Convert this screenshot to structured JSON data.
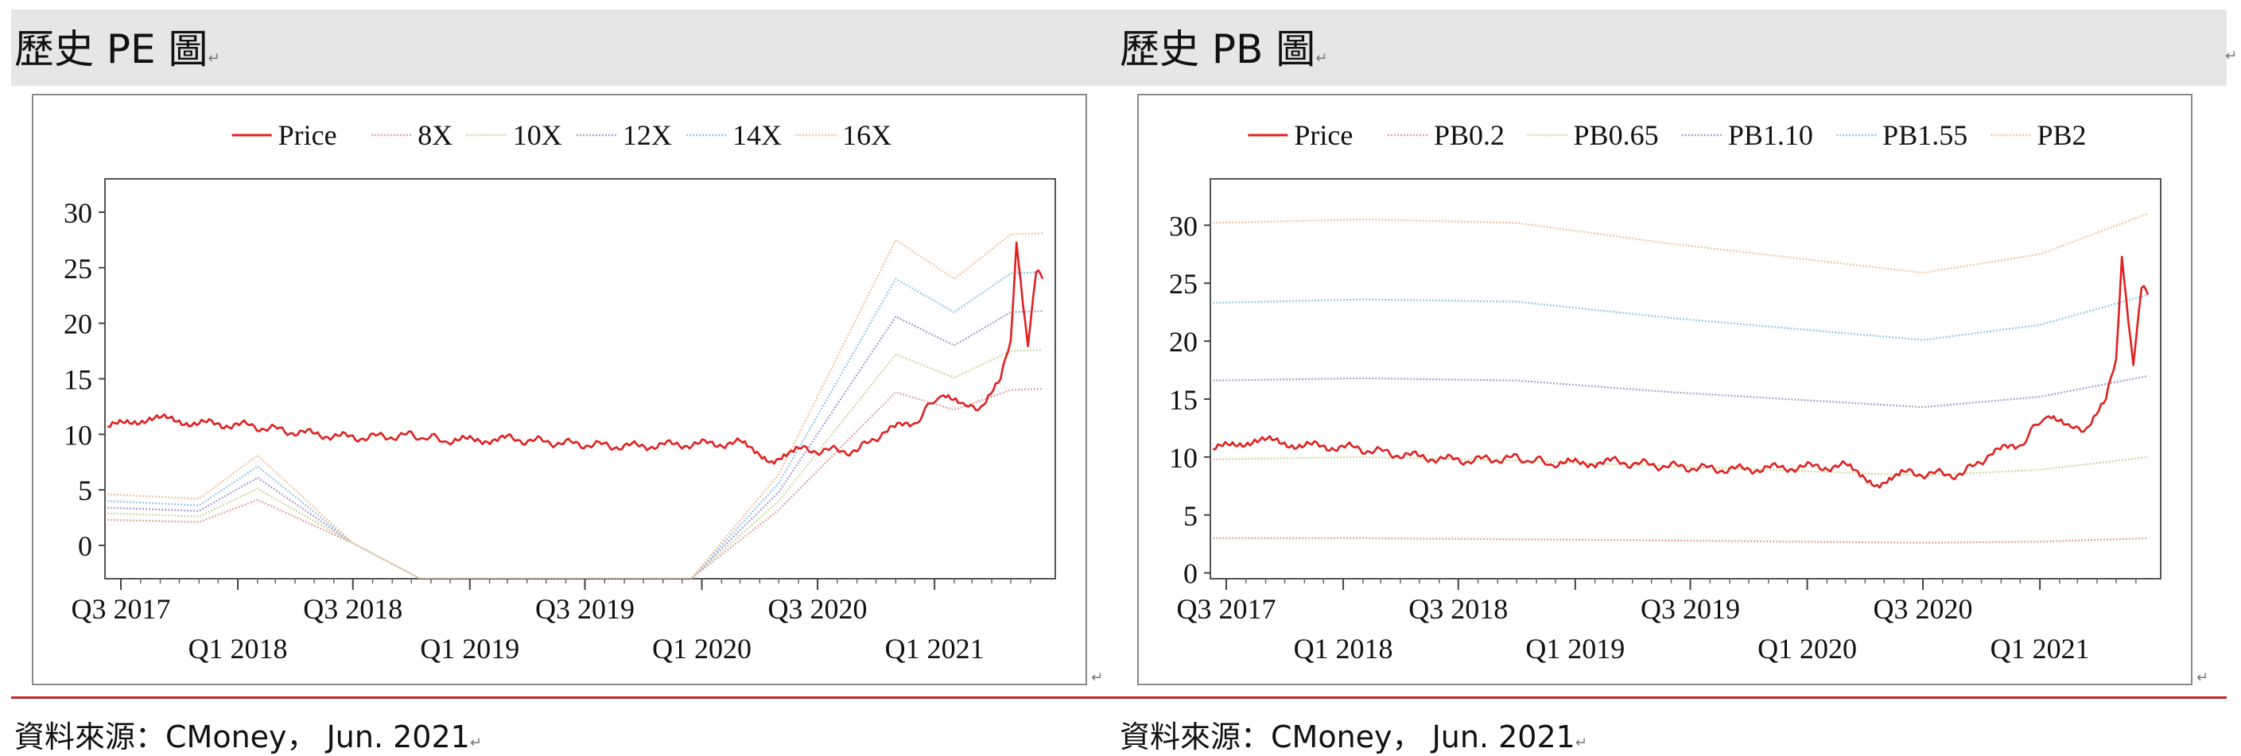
{
  "left_panel": {
    "title": "歷史 PE 圖",
    "source": "資料來源：CMoney， Jun. 2021"
  },
  "right_panel": {
    "title": "歷史 PB 圖",
    "source": "資料來源：CMoney， Jun. 2021"
  },
  "paragraph_mark": "↵",
  "chart_data": [
    {
      "id": "pe",
      "type": "line",
      "title": "",
      "xlabel": "",
      "ylabel": "",
      "xlim": [
        "2017-07-01",
        "2021-06-30"
      ],
      "ylim": [
        -3,
        33
      ],
      "yticks": [
        0,
        5,
        10,
        15,
        20,
        25,
        30
      ],
      "xticks": [
        {
          "label": "Q3 2017",
          "date": "2017-07-01",
          "row": 0
        },
        {
          "label": "Q1 2018",
          "date": "2018-01-01",
          "row": 1
        },
        {
          "label": "Q3 2018",
          "date": "2018-07-01",
          "row": 0
        },
        {
          "label": "Q1 2019",
          "date": "2019-01-01",
          "row": 1
        },
        {
          "label": "Q3 2019",
          "date": "2019-07-01",
          "row": 0
        },
        {
          "label": "Q1 2020",
          "date": "2020-01-01",
          "row": 1
        },
        {
          "label": "Q3 2020",
          "date": "2020-07-01",
          "row": 0
        },
        {
          "label": "Q1 2021",
          "date": "2021-01-01",
          "row": 1
        }
      ],
      "legend_position": "top",
      "grid": false,
      "series": [
        {
          "name": "Price",
          "color": "#e02020",
          "style": "solid",
          "points": [
            [
              "2017-06-10",
              10.6
            ],
            [
              "2017-08-15",
              11.5
            ],
            [
              "2017-11-01",
              11.0
            ],
            [
              "2018-01-15",
              10.8
            ],
            [
              "2018-04-01",
              10.2
            ],
            [
              "2018-07-01",
              9.7
            ],
            [
              "2018-10-01",
              9.9
            ],
            [
              "2018-12-01",
              9.4
            ],
            [
              "2019-03-01",
              9.6
            ],
            [
              "2019-06-01",
              9.2
            ],
            [
              "2019-09-01",
              8.9
            ],
            [
              "2019-12-01",
              9.1
            ],
            [
              "2020-03-01",
              9.2
            ],
            [
              "2020-04-20",
              7.7
            ],
            [
              "2020-06-01",
              8.6
            ],
            [
              "2020-09-01",
              8.5
            ],
            [
              "2020-10-15",
              10.3
            ],
            [
              "2020-12-01",
              11.1
            ],
            [
              "2021-01-15",
              13.8
            ],
            [
              "2021-02-15",
              12.4
            ],
            [
              "2021-03-15",
              12.6
            ],
            [
              "2021-04-15",
              14.8
            ],
            [
              "2021-05-01",
              18.5
            ],
            [
              "2021-05-10",
              27.5
            ],
            [
              "2021-05-20",
              22.0
            ],
            [
              "2021-05-28",
              18.2
            ],
            [
              "2021-06-10",
              24.5
            ],
            [
              "2021-06-20",
              24.0
            ]
          ]
        },
        {
          "name": "8X",
          "color": "#e0a0a0",
          "style": "dotted",
          "points": [
            [
              "2017-06-10",
              2.3
            ],
            [
              "2017-11-01",
              2.1
            ],
            [
              "2018-02-01",
              4.1
            ],
            [
              "2018-07-01",
              0.2
            ],
            [
              "2018-10-15",
              -3.0
            ],
            [
              "2019-12-15",
              -3.0
            ],
            [
              "2020-05-01",
              3.2
            ],
            [
              "2020-11-01",
              13.8
            ],
            [
              "2021-02-01",
              12.2
            ],
            [
              "2021-05-01",
              14.0
            ],
            [
              "2021-06-20",
              14.1
            ]
          ]
        },
        {
          "name": "10X",
          "color": "#c9d89a",
          "style": "dotted",
          "points": [
            [
              "2017-06-10",
              2.9
            ],
            [
              "2017-11-01",
              2.6
            ],
            [
              "2018-02-01",
              5.1
            ],
            [
              "2018-07-01",
              0.2
            ],
            [
              "2018-10-15",
              -3.0
            ],
            [
              "2019-12-15",
              -3.0
            ],
            [
              "2020-05-01",
              4.0
            ],
            [
              "2020-11-01",
              17.2
            ],
            [
              "2021-02-01",
              15.1
            ],
            [
              "2021-05-01",
              17.5
            ],
            [
              "2021-06-20",
              17.6
            ]
          ]
        },
        {
          "name": "12X",
          "color": "#a99bd0",
          "style": "dotted",
          "points": [
            [
              "2017-06-10",
              3.4
            ],
            [
              "2017-11-01",
              3.1
            ],
            [
              "2018-02-01",
              6.1
            ],
            [
              "2018-07-01",
              0.2
            ],
            [
              "2018-10-15",
              -3.0
            ],
            [
              "2019-12-15",
              -3.0
            ],
            [
              "2020-05-01",
              4.8
            ],
            [
              "2020-11-01",
              20.6
            ],
            [
              "2021-02-01",
              18.0
            ],
            [
              "2021-05-01",
              21.0
            ],
            [
              "2021-06-20",
              21.1
            ]
          ]
        },
        {
          "name": "14X",
          "color": "#8ec8e8",
          "style": "dotted",
          "points": [
            [
              "2017-06-10",
              4.0
            ],
            [
              "2017-11-01",
              3.6
            ],
            [
              "2018-02-01",
              7.1
            ],
            [
              "2018-07-01",
              0.2
            ],
            [
              "2018-10-15",
              -3.0
            ],
            [
              "2019-12-15",
              -3.0
            ],
            [
              "2020-05-01",
              5.6
            ],
            [
              "2020-11-01",
              24.0
            ],
            [
              "2021-02-01",
              21.0
            ],
            [
              "2021-05-01",
              24.5
            ],
            [
              "2021-06-20",
              24.6
            ]
          ]
        },
        {
          "name": "16X",
          "color": "#f2c39a",
          "style": "dotted",
          "points": [
            [
              "2017-06-10",
              4.6
            ],
            [
              "2017-11-01",
              4.2
            ],
            [
              "2018-02-01",
              8.1
            ],
            [
              "2018-07-01",
              0.2
            ],
            [
              "2018-10-15",
              -3.0
            ],
            [
              "2019-12-15",
              -3.0
            ],
            [
              "2020-05-01",
              6.4
            ],
            [
              "2020-11-01",
              27.5
            ],
            [
              "2021-02-01",
              24.0
            ],
            [
              "2021-05-01",
              28.0
            ],
            [
              "2021-06-20",
              28.1
            ]
          ]
        }
      ]
    },
    {
      "id": "pb",
      "type": "line",
      "title": "",
      "xlabel": "",
      "ylabel": "",
      "xlim": [
        "2017-07-01",
        "2021-06-30"
      ],
      "ylim": [
        -0.5,
        34
      ],
      "yticks": [
        0,
        5,
        10,
        15,
        20,
        25,
        30
      ],
      "xticks": [
        {
          "label": "Q3 2017",
          "date": "2017-07-01",
          "row": 0
        },
        {
          "label": "Q1 2018",
          "date": "2018-01-01",
          "row": 1
        },
        {
          "label": "Q3 2018",
          "date": "2018-07-01",
          "row": 0
        },
        {
          "label": "Q1 2019",
          "date": "2019-01-01",
          "row": 1
        },
        {
          "label": "Q3 2019",
          "date": "2019-07-01",
          "row": 0
        },
        {
          "label": "Q1 2020",
          "date": "2020-01-01",
          "row": 1
        },
        {
          "label": "Q3 2020",
          "date": "2020-07-01",
          "row": 0
        },
        {
          "label": "Q1 2021",
          "date": "2021-01-01",
          "row": 1
        }
      ],
      "legend_position": "top",
      "grid": false,
      "series": [
        {
          "name": "Price",
          "color": "#e02020",
          "style": "solid",
          "points": [
            [
              "2017-06-10",
              10.6
            ],
            [
              "2017-08-15",
              11.5
            ],
            [
              "2017-11-01",
              11.0
            ],
            [
              "2018-01-15",
              10.8
            ],
            [
              "2018-04-01",
              10.2
            ],
            [
              "2018-07-01",
              9.7
            ],
            [
              "2018-10-01",
              9.9
            ],
            [
              "2018-12-01",
              9.4
            ],
            [
              "2019-03-01",
              9.6
            ],
            [
              "2019-06-01",
              9.2
            ],
            [
              "2019-09-01",
              8.9
            ],
            [
              "2019-12-01",
              9.1
            ],
            [
              "2020-03-01",
              9.2
            ],
            [
              "2020-04-20",
              7.7
            ],
            [
              "2020-06-01",
              8.6
            ],
            [
              "2020-09-01",
              8.5
            ],
            [
              "2020-10-15",
              10.3
            ],
            [
              "2020-12-01",
              11.1
            ],
            [
              "2021-01-15",
              13.8
            ],
            [
              "2021-02-15",
              12.4
            ],
            [
              "2021-03-15",
              12.6
            ],
            [
              "2021-04-15",
              14.8
            ],
            [
              "2021-05-01",
              18.5
            ],
            [
              "2021-05-10",
              27.5
            ],
            [
              "2021-05-20",
              22.0
            ],
            [
              "2021-05-28",
              18.2
            ],
            [
              "2021-06-10",
              24.5
            ],
            [
              "2021-06-20",
              24.0
            ]
          ]
        },
        {
          "name": "PB0.2",
          "color": "#e0a0a0",
          "style": "dotted",
          "points": [
            [
              "2017-06-10",
              3.0
            ],
            [
              "2018-02-01",
              3.0
            ],
            [
              "2018-10-01",
              2.9
            ],
            [
              "2019-06-01",
              2.8
            ],
            [
              "2020-07-01",
              2.6
            ],
            [
              "2021-01-01",
              2.7
            ],
            [
              "2021-06-20",
              3.0
            ]
          ]
        },
        {
          "name": "PB0.65",
          "color": "#c9d89a",
          "style": "dotted",
          "points": [
            [
              "2017-06-10",
              9.8
            ],
            [
              "2018-02-01",
              10.0
            ],
            [
              "2018-10-01",
              9.7
            ],
            [
              "2019-06-01",
              9.2
            ],
            [
              "2020-07-01",
              8.4
            ],
            [
              "2021-01-01",
              8.9
            ],
            [
              "2021-06-20",
              10.0
            ]
          ]
        },
        {
          "name": "PB1.10",
          "color": "#a99bd0",
          "style": "dotted",
          "points": [
            [
              "2017-06-10",
              16.6
            ],
            [
              "2018-02-01",
              16.8
            ],
            [
              "2018-10-01",
              16.6
            ],
            [
              "2019-06-01",
              15.6
            ],
            [
              "2020-07-01",
              14.3
            ],
            [
              "2021-01-01",
              15.2
            ],
            [
              "2021-06-20",
              17.0
            ]
          ]
        },
        {
          "name": "PB1.55",
          "color": "#8ec8e8",
          "style": "dotted",
          "points": [
            [
              "2017-06-10",
              23.3
            ],
            [
              "2018-02-01",
              23.6
            ],
            [
              "2018-10-01",
              23.4
            ],
            [
              "2019-06-01",
              22.0
            ],
            [
              "2020-07-01",
              20.1
            ],
            [
              "2021-01-01",
              21.4
            ],
            [
              "2021-06-20",
              24.0
            ]
          ]
        },
        {
          "name": "PB2",
          "color": "#f2c39a",
          "style": "dotted",
          "points": [
            [
              "2017-06-10",
              30.2
            ],
            [
              "2018-02-01",
              30.5
            ],
            [
              "2018-10-01",
              30.2
            ],
            [
              "2019-06-01",
              28.4
            ],
            [
              "2020-07-01",
              25.9
            ],
            [
              "2021-01-01",
              27.5
            ],
            [
              "2021-06-20",
              31.0
            ]
          ]
        }
      ]
    }
  ]
}
